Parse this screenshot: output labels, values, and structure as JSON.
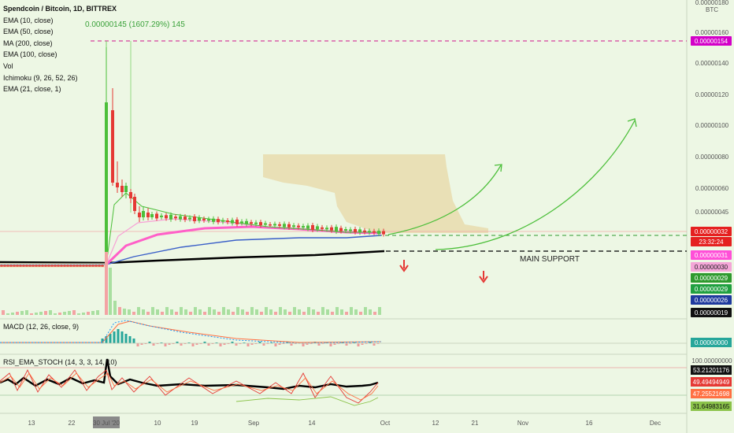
{
  "legend": {
    "title": "Spendcoin / Bitcoin, 1D, BITTREX",
    "indicators": [
      "EMA (10, close)",
      "EMA (50, close)",
      "MA (200, close)",
      "EMA (100, close)",
      "Vol",
      "Ichimoku (9, 26, 52, 26)",
      "EMA (21, close, 1)"
    ]
  },
  "measure_label": "0.00000145 (1607.29%) 145",
  "macd_label": "MACD (12, 26, close, 9)",
  "rsi_label": "RSI_EMA_STOCH (14, 3, 3, 14, 10)",
  "annotation": "MAIN SUPPORT",
  "currency": "BTC",
  "countdown": "23:32:24",
  "colors": {
    "background": "#edf7e4",
    "up_candle": "#4cbf3a",
    "down_candle": "#e53935",
    "ema_pink": "#ff5fc8",
    "ema_blue": "#3a5fc8",
    "ma_black": "#000000",
    "cloud": "#e8dcae",
    "target_line": "#d0128c",
    "support_line": "#000000",
    "arrow_green": "#4cbf3a"
  },
  "chart_data": {
    "type": "candlestick",
    "symbol": "Spendcoin / Bitcoin",
    "interval": "1D",
    "exchange": "BITTREX",
    "price_axis_ticks": [
      "0.00000180",
      "0.00000160",
      "0.00000140",
      "0.00000120",
      "0.00000100",
      "0.00000080",
      "0.00000060",
      "0.00000045",
      "0.00000032",
      "0.00000019"
    ],
    "time_axis_ticks": [
      "13",
      "22",
      "30 Jul '20",
      "10",
      "19",
      "Sep",
      "14",
      "Oct",
      "12",
      "21",
      "Nov",
      "16",
      "Dec"
    ],
    "price_tags": [
      {
        "value": "0.00000154",
        "color": "#d300c8",
        "text_color": "#ffffff"
      },
      {
        "value": "0.00000032",
        "color": "#e52020",
        "text_color": "#ffffff"
      },
      {
        "value": "23:32:24",
        "color": "#e52020",
        "text_color": "#ffffff"
      },
      {
        "value": "0.00000031",
        "color": "#ff4fd8",
        "text_color": "#ffffff"
      },
      {
        "value": "0.00000030",
        "color": "#f4a6d8",
        "text_color": "#222222"
      },
      {
        "value": "0.00000029",
        "color": "#2e9a2e",
        "text_color": "#ffffff"
      },
      {
        "value": "0.00000029",
        "color": "#20a040",
        "text_color": "#ffffff"
      },
      {
        "value": "0.00000026",
        "color": "#1f3a9e",
        "text_color": "#ffffff"
      },
      {
        "value": "0.00000019",
        "color": "#111111",
        "text_color": "#ffffff"
      }
    ],
    "macd_tags": [
      {
        "value": "0.00000000",
        "color": "#26a69a",
        "text_color": "#ffffff"
      }
    ],
    "rsi_ticks": [
      "100.00000000",
      "0.00000000"
    ],
    "rsi_tags": [
      {
        "value": "53.21201176",
        "color": "#111111",
        "text_color": "#ffffff"
      },
      {
        "value": "49.49494949",
        "color": "#e53935",
        "text_color": "#ffffff"
      },
      {
        "value": "47.25521698",
        "color": "#ff7043",
        "text_color": "#ffffff"
      },
      {
        "value": "31.64983165",
        "color": "#8bc34a",
        "text_color": "#111111"
      }
    ]
  }
}
